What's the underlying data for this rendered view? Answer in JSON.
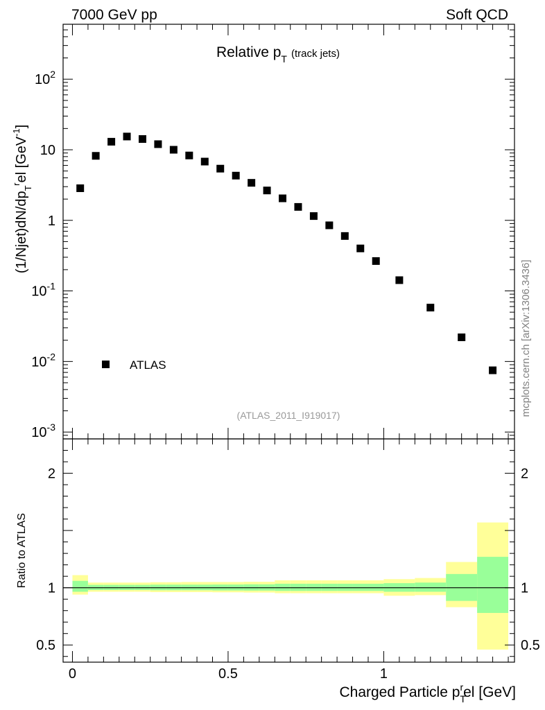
{
  "header": {
    "left": "7000 GeV pp",
    "right": "Soft QCD"
  },
  "watermark": "mcplots.cern.ch [arXiv:1306.3436]",
  "analysis_tag": "(ATLAS_2011_I919017)",
  "colors": {
    "data": "#000000",
    "band_inner": "#99ff99",
    "band_outer": "#ffff99",
    "analysis_tag": "#999999",
    "watermark": "#808080"
  },
  "chart_data": [
    {
      "type": "scatter",
      "panel": "main",
      "title": "Relative p_T (track jets)",
      "title_main": "Relative p",
      "title_sub": "T",
      "title_small": "(track jets)",
      "ylabel": "(1/Njet)dN/dp_T^rel [GeV^-1]",
      "ylabel_text": {
        "a": "(1/Njet)dN/dp",
        "b": "T",
        "c": "r",
        "d": "el [GeV",
        "e": "-1",
        "f": "]"
      },
      "yscale": "log",
      "xlim": [
        -0.03,
        1.42
      ],
      "ylim": [
        0.0008,
        600
      ],
      "y_ticks": [
        {
          "value": 0.001,
          "base": "10",
          "exp": "-3"
        },
        {
          "value": 0.01,
          "base": "10",
          "exp": "-2"
        },
        {
          "value": 0.1,
          "base": "10",
          "exp": "-1"
        },
        {
          "value": 1,
          "base": "1",
          "exp": ""
        },
        {
          "value": 10,
          "base": "10",
          "exp": ""
        },
        {
          "value": 100,
          "base": "10",
          "exp": "2"
        }
      ],
      "legend": {
        "entries": [
          "ATLAS"
        ],
        "position": "bottom-left"
      },
      "series": [
        {
          "name": "ATLAS",
          "x": [
            0.025,
            0.075,
            0.125,
            0.175,
            0.225,
            0.275,
            0.325,
            0.375,
            0.425,
            0.475,
            0.525,
            0.575,
            0.625,
            0.675,
            0.725,
            0.775,
            0.825,
            0.875,
            0.925,
            0.975,
            1.05,
            1.15,
            1.25,
            1.35
          ],
          "values": [
            2.85,
            8.2,
            13.0,
            15.4,
            14.2,
            12.0,
            10.0,
            8.3,
            6.8,
            5.4,
            4.3,
            3.4,
            2.65,
            2.05,
            1.55,
            1.15,
            0.85,
            0.6,
            0.4,
            0.265,
            0.142,
            0.058,
            0.022,
            0.0075
          ]
        }
      ]
    },
    {
      "type": "area",
      "panel": "ratio",
      "ylabel": "Ratio to ATLAS",
      "xlabel": "Charged Particle p_T^rel [GeV]",
      "xlabel_text": {
        "a": "Charged Particle p",
        "b": "T",
        "c": "r",
        "d": "el [GeV]"
      },
      "xlim": [
        -0.03,
        1.42
      ],
      "ylim": [
        0.35,
        2.3
      ],
      "x_ticks": [
        {
          "value": 0,
          "label": "0"
        },
        {
          "value": 0.5,
          "label": "0.5"
        },
        {
          "value": 1,
          "label": "1"
        }
      ],
      "y_ticks": [
        {
          "value": 0.5,
          "label": "0.5"
        },
        {
          "value": 1,
          "label": "1"
        },
        {
          "value": 2,
          "label": "2"
        }
      ],
      "reference_line": 1,
      "bins": [
        {
          "lo": 0.0,
          "hi": 0.05,
          "inner": [
            0.965,
            1.06
          ],
          "outer": [
            0.94,
            1.11
          ]
        },
        {
          "lo": 0.05,
          "hi": 0.1,
          "inner": [
            0.98,
            1.025
          ],
          "outer": [
            0.965,
            1.045
          ]
        },
        {
          "lo": 0.1,
          "hi": 0.15,
          "inner": [
            0.98,
            1.025
          ],
          "outer": [
            0.965,
            1.045
          ]
        },
        {
          "lo": 0.15,
          "hi": 0.2,
          "inner": [
            0.98,
            1.025
          ],
          "outer": [
            0.965,
            1.045
          ]
        },
        {
          "lo": 0.2,
          "hi": 0.25,
          "inner": [
            0.98,
            1.025
          ],
          "outer": [
            0.965,
            1.045
          ]
        },
        {
          "lo": 0.25,
          "hi": 0.3,
          "inner": [
            0.978,
            1.027
          ],
          "outer": [
            0.962,
            1.048
          ]
        },
        {
          "lo": 0.3,
          "hi": 0.35,
          "inner": [
            0.978,
            1.027
          ],
          "outer": [
            0.962,
            1.048
          ]
        },
        {
          "lo": 0.35,
          "hi": 0.4,
          "inner": [
            0.978,
            1.027
          ],
          "outer": [
            0.962,
            1.05
          ]
        },
        {
          "lo": 0.4,
          "hi": 0.45,
          "inner": [
            0.978,
            1.027
          ],
          "outer": [
            0.962,
            1.05
          ]
        },
        {
          "lo": 0.45,
          "hi": 0.5,
          "inner": [
            0.976,
            1.028
          ],
          "outer": [
            0.96,
            1.05
          ]
        },
        {
          "lo": 0.5,
          "hi": 0.55,
          "inner": [
            0.976,
            1.028
          ],
          "outer": [
            0.96,
            1.05
          ]
        },
        {
          "lo": 0.55,
          "hi": 0.6,
          "inner": [
            0.975,
            1.03
          ],
          "outer": [
            0.958,
            1.052
          ]
        },
        {
          "lo": 0.6,
          "hi": 0.65,
          "inner": [
            0.975,
            1.03
          ],
          "outer": [
            0.958,
            1.052
          ]
        },
        {
          "lo": 0.65,
          "hi": 0.7,
          "inner": [
            0.972,
            1.035
          ],
          "outer": [
            0.952,
            1.065
          ]
        },
        {
          "lo": 0.7,
          "hi": 0.75,
          "inner": [
            0.972,
            1.035
          ],
          "outer": [
            0.952,
            1.065
          ]
        },
        {
          "lo": 0.75,
          "hi": 0.8,
          "inner": [
            0.972,
            1.035
          ],
          "outer": [
            0.952,
            1.065
          ]
        },
        {
          "lo": 0.8,
          "hi": 0.85,
          "inner": [
            0.972,
            1.035
          ],
          "outer": [
            0.952,
            1.065
          ]
        },
        {
          "lo": 0.85,
          "hi": 0.9,
          "inner": [
            0.972,
            1.035
          ],
          "outer": [
            0.952,
            1.065
          ]
        },
        {
          "lo": 0.9,
          "hi": 0.95,
          "inner": [
            0.972,
            1.035
          ],
          "outer": [
            0.952,
            1.065
          ]
        },
        {
          "lo": 0.95,
          "hi": 1.0,
          "inner": [
            0.972,
            1.035
          ],
          "outer": [
            0.952,
            1.065
          ]
        },
        {
          "lo": 1.0,
          "hi": 1.1,
          "inner": [
            0.965,
            1.04
          ],
          "outer": [
            0.93,
            1.075
          ]
        },
        {
          "lo": 1.1,
          "hi": 1.2,
          "inner": [
            0.965,
            1.045
          ],
          "outer": [
            0.935,
            1.085
          ]
        },
        {
          "lo": 1.2,
          "hi": 1.3,
          "inner": [
            0.885,
            1.12
          ],
          "outer": [
            0.83,
            1.225
          ]
        },
        {
          "lo": 1.3,
          "hi": 1.4,
          "inner": [
            0.78,
            1.27
          ],
          "outer": [
            0.46,
            1.57
          ]
        }
      ]
    }
  ]
}
